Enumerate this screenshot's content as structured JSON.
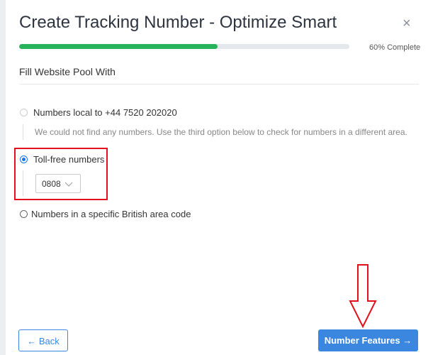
{
  "header": {
    "title": "Create Tracking Number - Optimize Smart"
  },
  "progress": {
    "value": 60,
    "label": "60% Complete"
  },
  "section": {
    "title": "Fill Website Pool With"
  },
  "options": [
    {
      "label": "Numbers local to +44 7520 202020",
      "note": "We could not find any numbers. Use the third option below to check for numbers in a different area."
    },
    {
      "label": "Toll-free numbers",
      "select": "0808"
    },
    {
      "label": "Numbers in a specific British area code"
    }
  ],
  "buttons": {
    "back": "Back",
    "next": "Number Features"
  }
}
